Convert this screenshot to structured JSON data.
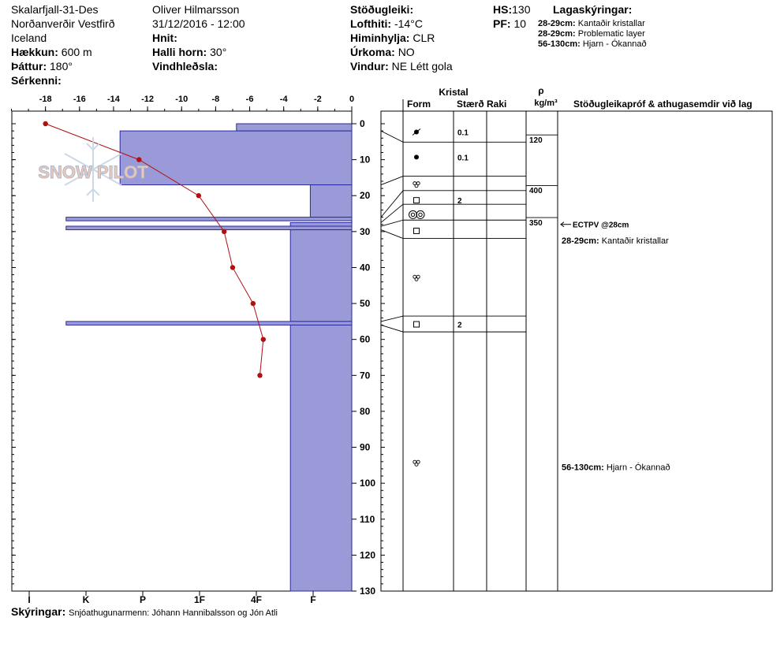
{
  "header": {
    "location": "Skalarfjall-31-Des",
    "region": "Norðanverðir Vestfirð",
    "country": "Iceland",
    "elevation_label": "Hækkun:",
    "elevation_value": "600 m",
    "aspect_label": "Þáttur:",
    "aspect_value": "180°",
    "features_label": "Sérkenni:",
    "observer": "Oliver Hilmarsson",
    "datetime": "31/12/2016 - 12:00",
    "coords_label": "Hnit:",
    "slope_label": "Halli horn:",
    "slope_value": "30°",
    "wind_loading_label": "Vindhleðsla:",
    "stability_label": "Stöðugleiki:",
    "air_temp_label": "Lofthiti:",
    "air_temp_value": "-14°C",
    "sky_label": "Himinhylja:",
    "sky_value": "CLR",
    "precip_label": "Úrkoma:",
    "precip_value": "NO",
    "wind_label": "Vindur:",
    "wind_value": "NE Létt gola",
    "hs_label": "HS:",
    "hs_value": "130",
    "pf_label": "PF:",
    "pf_value": "10",
    "layers_title": "Lagaskýringar:",
    "layer_notes": [
      {
        "depth": "28-29cm:",
        "text": "Kantaðir kristallar"
      },
      {
        "depth": "28-29cm:",
        "text": "Problematic layer"
      },
      {
        "depth": "56-130cm:",
        "text": "Hjarn - Ókannað"
      }
    ]
  },
  "columns": {
    "crystal": "Kristal",
    "form": "Form",
    "size": "Stærð",
    "moisture": "Raki",
    "density_symbol": "ρ",
    "density_unit": "kg/m³",
    "tests": "Stöðugleikapróf & athugasemdir við lag"
  },
  "footer": {
    "label": "Skýringar:",
    "text": "Snjóathugunarmenn: Jóhann Hannibalsson og Jón Atli"
  },
  "logo_text": "SNOW PILOT",
  "colors": {
    "hardness_fill": "#9a9ad8",
    "hardness_stroke": "#2a2aa0",
    "temp_line": "#b01010"
  },
  "chart_data": {
    "type": "line",
    "x_top_ticks": [
      "-18",
      "-16",
      "-14",
      "-12",
      "-10",
      "-8",
      "-6",
      "-4",
      "-2",
      "0"
    ],
    "x_top_range": [
      -20,
      0
    ],
    "hardness_ticks": [
      "I",
      "K",
      "P",
      "1F",
      "4F",
      "F"
    ],
    "y_ticks": [
      "0",
      "10",
      "20",
      "30",
      "40",
      "50",
      "60",
      "70",
      "80",
      "90",
      "100",
      "110",
      "120",
      "130"
    ],
    "y_range": [
      0,
      130
    ],
    "temperature_profile": [
      {
        "depth": 0,
        "temp": -18
      },
      {
        "depth": 10,
        "temp": -12.5
      },
      {
        "depth": 20,
        "temp": -9
      },
      {
        "depth": 30,
        "temp": -7.5
      },
      {
        "depth": 40,
        "temp": -7
      },
      {
        "depth": 50,
        "temp": -5.8
      },
      {
        "depth": 60,
        "temp": -5.2
      },
      {
        "depth": 70,
        "temp": -5.4
      }
    ],
    "hardness_layers": [
      {
        "top": 0,
        "bottom": 2,
        "hardness_index": 3.65
      },
      {
        "top": 2,
        "bottom": 17,
        "hardness_index": 1.6
      },
      {
        "top": 17,
        "bottom": 26,
        "hardness_index": 4.95
      },
      {
        "top": 26,
        "bottom": 27,
        "hardness_index": 0.65
      },
      {
        "top": 27.5,
        "bottom": 28.5,
        "hardness_index": 4.6
      },
      {
        "top": 28.5,
        "bottom": 29.5,
        "hardness_index": 0.65
      },
      {
        "top": 29.5,
        "bottom": 55,
        "hardness_index": 4.6
      },
      {
        "top": 55,
        "bottom": 56,
        "hardness_index": 0.65
      },
      {
        "top": 56,
        "bottom": 130,
        "hardness_index": 4.6
      }
    ],
    "layer_boundaries": [
      2,
      17,
      26,
      27.5,
      28.5,
      29.5,
      55,
      56
    ],
    "grain_rows": [
      {
        "depth": 2.3,
        "form": "decomposing",
        "size": "0.1"
      },
      {
        "depth": 9.3,
        "form": "rounded",
        "size": "0.1"
      },
      {
        "depth": 16.8,
        "form": "melt",
        "size": ""
      },
      {
        "depth": 21.3,
        "form": "faceted",
        "size": "2"
      },
      {
        "depth": 25.3,
        "form": "surface-hoar",
        "size": ""
      },
      {
        "depth": 29.8,
        "form": "faceted",
        "size": ""
      },
      {
        "depth": 42.8,
        "form": "melt",
        "size": ""
      },
      {
        "depth": 55.8,
        "form": "faceted",
        "size": "2"
      },
      {
        "depth": 94.3,
        "form": "melt",
        "size": ""
      }
    ],
    "density_values": [
      {
        "depth": 4.4,
        "value": "120"
      },
      {
        "depth": 18.4,
        "value": "400"
      },
      {
        "depth": 27.4,
        "value": "350"
      }
    ],
    "test_result": {
      "depth": 28,
      "text": "ECTPV @28cm"
    },
    "layer_comments": [
      {
        "depth": 32.4,
        "depth_label": "28-29cm:",
        "text": "Kantaðir kristallar"
      },
      {
        "depth": 95.5,
        "depth_label": "56-130cm:",
        "text": "Hjarn - Ókannað"
      }
    ]
  }
}
